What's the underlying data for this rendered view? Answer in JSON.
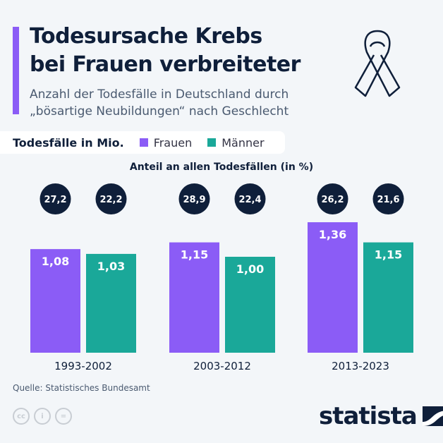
{
  "header": {
    "title_line1": "Todesursache Krebs",
    "title_line2": "bei Frauen verbreiteter",
    "subtitle_line1": "Anzahl der Todesfälle in Deutschland durch",
    "subtitle_line2": "„bösartige Neubildungen“ nach Geschlecht"
  },
  "legend": {
    "label": "Todesfälle in Mio.",
    "items": [
      "Frauen",
      "Männer"
    ]
  },
  "chart_data": {
    "type": "bar",
    "ylabel": "Todesfälle in Mio.",
    "categories": [
      "1993-2002",
      "2003-2012",
      "2013-2023"
    ],
    "series": [
      {
        "name": "Frauen",
        "values": [
          1.08,
          1.15,
          1.36
        ],
        "labels": [
          "1,08",
          "1,15",
          "1,36"
        ],
        "share": [
          "27,2",
          "28,9",
          "26,2"
        ],
        "color": "#8b5cf6"
      },
      {
        "name": "Männer",
        "values": [
          1.03,
          1.0,
          1.15
        ],
        "labels": [
          "1,03",
          "1,00",
          "1,15"
        ],
        "share": [
          "22,2",
          "22,4",
          "21,6"
        ],
        "color": "#1aa899"
      }
    ],
    "share_title": "Anteil an allen Todesfällen (in %)",
    "ylim": [
      0,
      1.4
    ],
    "grid": false,
    "legend_placement": "top-left"
  },
  "footer": {
    "source": "Quelle: Statistisches Bundesamt",
    "brand": "statista"
  }
}
